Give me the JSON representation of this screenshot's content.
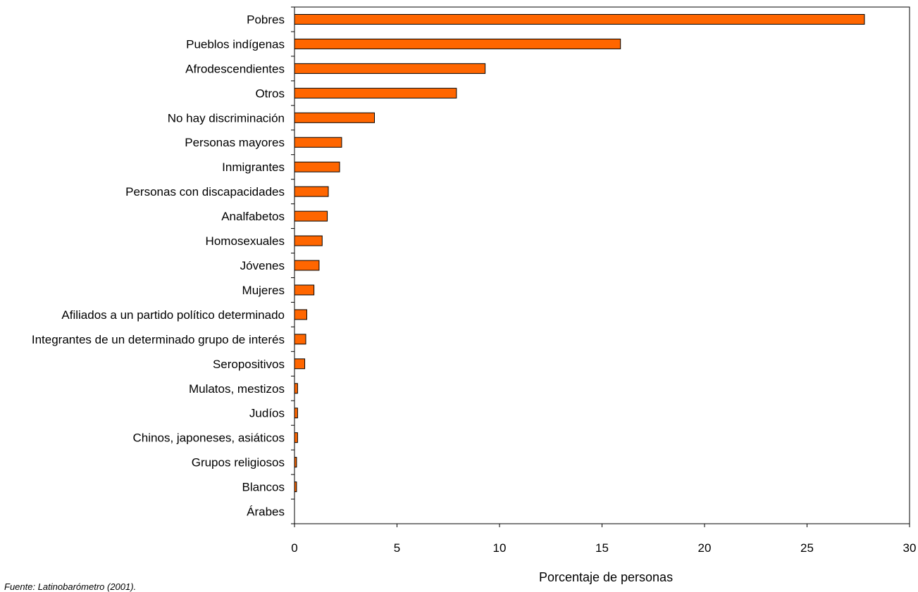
{
  "chart_data": {
    "type": "bar",
    "orientation": "horizontal",
    "categories": [
      "Pobres",
      "Pueblos indígenas",
      "Afrodescendientes",
      "Otros",
      "No hay discriminación",
      "Personas mayores",
      "Inmigrantes",
      "Personas con discapacidades",
      "Analfabetos",
      "Homosexuales",
      "Jóvenes",
      "Mujeres",
      "Afiliados a un partido político determinado",
      "Integrantes de un determinado grupo de interés",
      "Seropositivos",
      "Mulatos, mestizos",
      "Judíos",
      "Chinos, japoneses, asiáticos",
      "Grupos religiosos",
      "Blancos",
      "Árabes"
    ],
    "values": [
      27.8,
      15.9,
      9.3,
      7.9,
      3.9,
      2.3,
      2.2,
      1.65,
      1.6,
      1.35,
      1.2,
      0.95,
      0.6,
      0.55,
      0.5,
      0.15,
      0.15,
      0.15,
      0.1,
      0.1,
      0.0
    ],
    "xlabel": "Porcentaje de personas",
    "ylabel": "",
    "xlim": [
      0,
      30
    ],
    "xticks": [
      0,
      5,
      10,
      15,
      20,
      25,
      30
    ],
    "grid": false,
    "legend": "none",
    "bar_color": "#FF6600",
    "bar_edge_color": "#000000"
  },
  "source_prefix": "Fuente:",
  "source_text": " Latinobarómetro (2001)."
}
